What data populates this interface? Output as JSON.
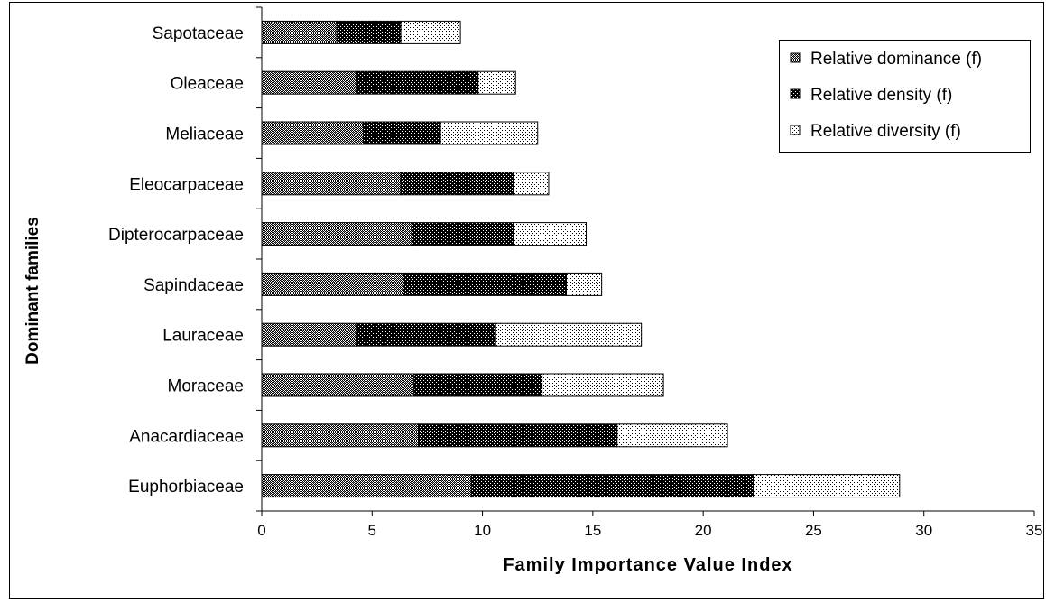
{
  "chart_data": {
    "type": "bar",
    "orientation": "horizontal",
    "stacked": true,
    "xlabel": "Family Importance Value Index",
    "ylabel": "Dominant families",
    "xlim": [
      0,
      35
    ],
    "xticks": [
      0,
      5,
      10,
      15,
      20,
      25,
      30,
      35
    ],
    "grid": false,
    "legend_position": "top-right",
    "categories": [
      "Euphorbiaceae",
      "Anacardiaceae",
      "Moraceae",
      "Lauraceae",
      "Sapindaceae",
      "Dipterocarpaceae",
      "Eleocarpaceae",
      "Meliaceae",
      "Oleaceae",
      "Sapotaceae"
    ],
    "series": [
      {
        "name": "Relative dominance (f)",
        "pattern": "crosshatch",
        "color": "#9a9a9a",
        "values": [
          9.5,
          7.1,
          6.9,
          4.3,
          6.4,
          6.8,
          6.3,
          4.6,
          4.3,
          3.4
        ]
      },
      {
        "name": "Relative density (f)",
        "pattern": "dense-dots",
        "color": "#000000",
        "values": [
          12.8,
          9.0,
          5.8,
          6.3,
          7.4,
          4.6,
          5.1,
          3.5,
          5.5,
          2.9
        ]
      },
      {
        "name": "Relative diversity (f)",
        "pattern": "sparse-dots",
        "color": "#ffffff",
        "values": [
          6.6,
          5.0,
          5.5,
          6.6,
          1.6,
          3.3,
          1.6,
          4.4,
          1.7,
          2.7
        ]
      }
    ]
  }
}
